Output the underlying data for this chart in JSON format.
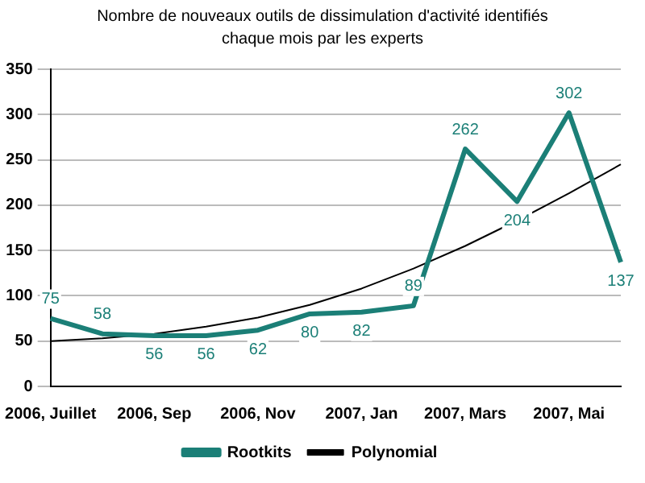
{
  "chart_data": {
    "type": "line",
    "title": "Nombre de nouveaux outils de dissimulation d'activité identifiés chaque mois par les experts",
    "categories": [
      "2006, Juillet",
      null,
      "2006, Sep",
      null,
      "2006, Nov",
      null,
      "2007, Jan",
      null,
      "2007, Mars",
      null,
      "2007, Mai",
      null
    ],
    "series": [
      {
        "name": "Rootkits",
        "color": "#1b7f77",
        "values": [
          75,
          58,
          56,
          56,
          62,
          80,
          82,
          89,
          262,
          204,
          302,
          137
        ],
        "value_labels": [
          "75",
          "58",
          "56",
          "56",
          "62",
          "80",
          "82",
          "89",
          "262",
          "204",
          "302",
          "137"
        ]
      },
      {
        "name": "Polynomial",
        "color": "#000000",
        "values": [
          50,
          53,
          58,
          66,
          76,
          90,
          108,
          130,
          155,
          183,
          213,
          245
        ]
      }
    ],
    "ylim": [
      0,
      350
    ],
    "yticks": [
      0,
      50,
      100,
      150,
      200,
      250,
      300,
      350
    ],
    "grid": "y",
    "legend": "bottom",
    "marker": "none"
  }
}
